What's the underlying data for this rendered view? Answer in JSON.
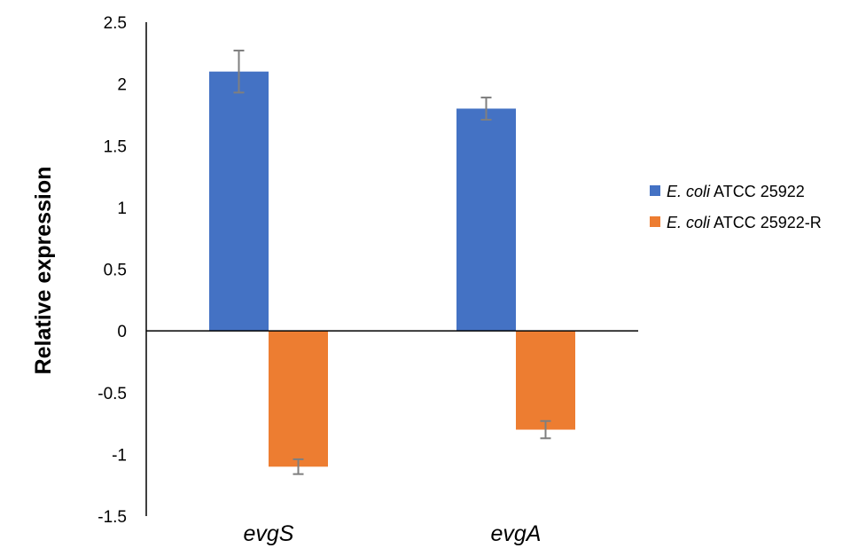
{
  "chart_data": {
    "type": "bar",
    "title": "",
    "xlabel": "",
    "ylabel": "Relative expression",
    "ylim": [
      -1.5,
      2.5
    ],
    "yticks": [
      "2.5",
      "2",
      "1.5",
      "1",
      "0.5",
      "0",
      "-0.5",
      "-1",
      "-1.5"
    ],
    "categories": [
      "evgS",
      "evgA"
    ],
    "series": [
      {
        "name": "E. coli ATCC 25922",
        "name_italic": "E. coli",
        "name_rest": " ATCC 25922",
        "color": "#4472C4",
        "values": [
          2.1,
          1.8
        ],
        "errors": [
          0.17,
          0.09
        ]
      },
      {
        "name": "E. coli ATCC 25922-R",
        "name_italic": "E. coli",
        "name_rest": " ATCC 25922-R",
        "color": "#ED7D31",
        "values": [
          -1.1,
          -0.8
        ],
        "errors": [
          0.06,
          0.07
        ]
      }
    ],
    "legend_position": "right",
    "grid": false
  }
}
